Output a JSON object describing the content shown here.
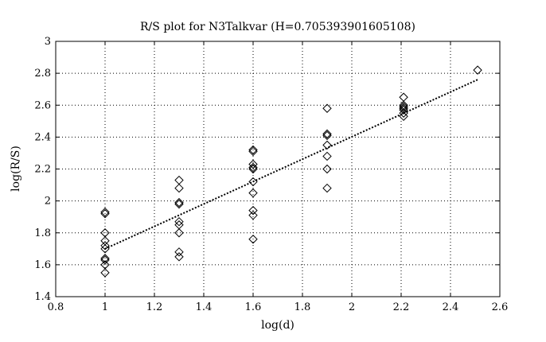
{
  "chart_data": {
    "type": "scatter",
    "title": "R/S plot for N3Talkvar (H=0.705393901605108)",
    "xlabel": "log(d)",
    "ylabel": "log(R/S)",
    "xlim": [
      0.8,
      2.6
    ],
    "ylim": [
      1.4,
      3.0
    ],
    "xticks": [
      "0.8",
      "1",
      "1.2",
      "1.4",
      "1.6",
      "1.8",
      "2",
      "2.2",
      "2.4",
      "2.6"
    ],
    "yticks": [
      "1.4",
      "1.6",
      "1.8",
      "2",
      "2.2",
      "2.4",
      "2.6",
      "2.8",
      "3"
    ],
    "grid": true,
    "marker": "diamond",
    "series": [
      {
        "points": [
          {
            "x": 1.0,
            "y": 1.93
          },
          {
            "x": 1.0,
            "y": 1.92
          },
          {
            "x": 1.0,
            "y": 1.8
          },
          {
            "x": 1.0,
            "y": 1.75
          },
          {
            "x": 1.0,
            "y": 1.72
          },
          {
            "x": 1.0,
            "y": 1.7
          },
          {
            "x": 1.0,
            "y": 1.64
          },
          {
            "x": 1.0,
            "y": 1.63
          },
          {
            "x": 1.0,
            "y": 1.6
          },
          {
            "x": 1.0,
            "y": 1.55
          },
          {
            "x": 1.3,
            "y": 2.13
          },
          {
            "x": 1.3,
            "y": 2.08
          },
          {
            "x": 1.3,
            "y": 1.99
          },
          {
            "x": 1.3,
            "y": 1.98
          },
          {
            "x": 1.3,
            "y": 1.87
          },
          {
            "x": 1.3,
            "y": 1.85
          },
          {
            "x": 1.3,
            "y": 1.8
          },
          {
            "x": 1.3,
            "y": 1.68
          },
          {
            "x": 1.3,
            "y": 1.65
          },
          {
            "x": 1.6,
            "y": 2.32
          },
          {
            "x": 1.6,
            "y": 2.31
          },
          {
            "x": 1.6,
            "y": 2.23
          },
          {
            "x": 1.6,
            "y": 2.21
          },
          {
            "x": 1.6,
            "y": 2.2
          },
          {
            "x": 1.6,
            "y": 2.12
          },
          {
            "x": 1.6,
            "y": 2.05
          },
          {
            "x": 1.6,
            "y": 1.94
          },
          {
            "x": 1.6,
            "y": 1.91
          },
          {
            "x": 1.6,
            "y": 1.76
          },
          {
            "x": 1.9,
            "y": 2.58
          },
          {
            "x": 1.9,
            "y": 2.42
          },
          {
            "x": 1.9,
            "y": 2.41
          },
          {
            "x": 1.9,
            "y": 2.35
          },
          {
            "x": 1.9,
            "y": 2.28
          },
          {
            "x": 1.9,
            "y": 2.2
          },
          {
            "x": 1.9,
            "y": 2.08
          },
          {
            "x": 2.21,
            "y": 2.65
          },
          {
            "x": 2.21,
            "y": 2.6
          },
          {
            "x": 2.21,
            "y": 2.59
          },
          {
            "x": 2.21,
            "y": 2.58
          },
          {
            "x": 2.21,
            "y": 2.57
          },
          {
            "x": 2.21,
            "y": 2.55
          },
          {
            "x": 2.21,
            "y": 2.53
          },
          {
            "x": 2.51,
            "y": 2.82
          }
        ]
      }
    ],
    "fit_line": {
      "style": "dotted",
      "x": [
        1.0,
        2.51
      ],
      "y": [
        1.7,
        2.76
      ]
    }
  }
}
